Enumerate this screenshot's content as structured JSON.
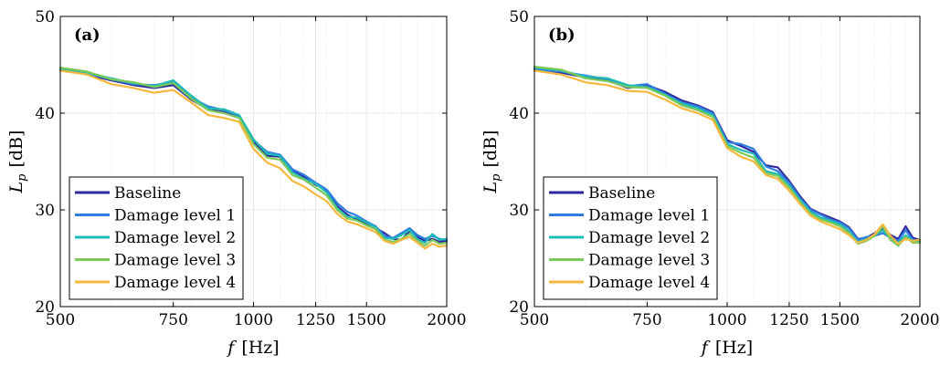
{
  "chart_data": [
    {
      "type": "line",
      "panel_label": "(a)",
      "xlabel_var": "f",
      "xlabel_unit": "[Hz]",
      "ylabel_var": "L",
      "ylabel_sub": "p",
      "ylabel_unit": "[dB]",
      "xscale": "log",
      "xlim": [
        500,
        2000
      ],
      "ylim": [
        20,
        50
      ],
      "xticks": [
        500,
        750,
        1000,
        1250,
        1500,
        2000
      ],
      "yticks": [
        20,
        30,
        40,
        50
      ],
      "grid": true,
      "legend_position": "bottom-left",
      "x": [
        500,
        550,
        600,
        650,
        700,
        750,
        800,
        850,
        900,
        950,
        1000,
        1050,
        1100,
        1150,
        1200,
        1250,
        1300,
        1350,
        1400,
        1450,
        1500,
        1550,
        1600,
        1650,
        1700,
        1750,
        1800,
        1850,
        1900,
        1950,
        2000
      ],
      "series": [
        {
          "name": "Baseline",
          "color": "#2e2a9e",
          "values": [
            44.5,
            44.0,
            43.4,
            42.9,
            42.6,
            42.9,
            41.4,
            40.4,
            40.1,
            39.6,
            37.0,
            35.6,
            35.5,
            34.0,
            33.4,
            32.6,
            32.0,
            30.4,
            29.5,
            29.0,
            28.6,
            28.1,
            27.6,
            27.0,
            26.9,
            27.8,
            27.2,
            26.8,
            27.0,
            26.7,
            26.8
          ]
        },
        {
          "name": "Damage level 1",
          "color": "#2f7de0",
          "values": [
            44.5,
            44.1,
            43.5,
            43.0,
            42.9,
            43.2,
            41.6,
            40.7,
            40.3,
            39.7,
            37.2,
            36.0,
            35.7,
            34.2,
            33.6,
            32.8,
            32.1,
            30.7,
            29.8,
            29.4,
            28.8,
            28.3,
            27.3,
            27.1,
            27.6,
            28.1,
            27.4,
            27.0,
            27.3,
            27.0,
            26.9
          ]
        },
        {
          "name": "Damage level 2",
          "color": "#1fbbb5",
          "values": [
            44.6,
            44.2,
            43.6,
            43.1,
            42.8,
            43.4,
            41.8,
            40.5,
            40.4,
            39.8,
            37.3,
            35.8,
            35.6,
            33.9,
            33.2,
            32.7,
            31.8,
            30.2,
            29.3,
            29.2,
            28.7,
            28.2,
            27.1,
            27.0,
            27.4,
            27.9,
            27.0,
            26.6,
            27.5,
            26.9,
            27.0
          ]
        },
        {
          "name": "Damage level 3",
          "color": "#7cc95a",
          "values": [
            44.7,
            44.3,
            43.5,
            43.2,
            42.7,
            43.1,
            41.5,
            40.3,
            40.0,
            39.5,
            36.8,
            35.4,
            35.2,
            33.6,
            33.1,
            32.3,
            31.5,
            30.0,
            29.1,
            28.9,
            28.4,
            28.0,
            26.9,
            26.7,
            27.0,
            27.5,
            26.8,
            26.3,
            26.9,
            26.5,
            26.6
          ]
        },
        {
          "name": "Damage level 4",
          "color": "#f5b83d",
          "values": [
            44.4,
            44.0,
            43.0,
            42.6,
            42.1,
            42.4,
            41.1,
            39.8,
            39.5,
            39.1,
            36.3,
            34.9,
            34.3,
            33.0,
            32.4,
            31.6,
            30.9,
            29.6,
            28.8,
            28.5,
            28.1,
            27.7,
            26.8,
            26.5,
            26.9,
            27.2,
            26.6,
            26.0,
            26.5,
            26.2,
            26.3
          ]
        }
      ]
    },
    {
      "type": "line",
      "panel_label": "(b)",
      "xlabel_var": "f",
      "xlabel_unit": "[Hz]",
      "ylabel_var": "L",
      "ylabel_sub": "p",
      "ylabel_unit": "[dB]",
      "xscale": "log",
      "xlim": [
        500,
        2000
      ],
      "ylim": [
        20,
        50
      ],
      "xticks": [
        500,
        750,
        1000,
        1250,
        1500,
        2000
      ],
      "yticks": [
        20,
        30,
        40,
        50
      ],
      "grid": true,
      "legend_position": "bottom-left",
      "x": [
        500,
        550,
        600,
        650,
        700,
        750,
        800,
        850,
        900,
        950,
        1000,
        1050,
        1100,
        1150,
        1200,
        1250,
        1300,
        1350,
        1400,
        1450,
        1500,
        1550,
        1600,
        1650,
        1700,
        1750,
        1800,
        1850,
        1900,
        1950,
        2000
      ],
      "series": [
        {
          "name": "Baseline",
          "color": "#2e2a9e",
          "values": [
            44.6,
            44.2,
            43.7,
            43.4,
            42.6,
            42.9,
            42.2,
            41.3,
            40.8,
            40.1,
            37.2,
            36.6,
            36.0,
            34.6,
            34.4,
            33.0,
            31.4,
            30.1,
            29.6,
            29.2,
            28.8,
            28.2,
            27.0,
            27.1,
            27.6,
            28.1,
            27.4,
            27.0,
            28.3,
            27.1,
            26.9
          ]
        },
        {
          "name": "Damage level 1",
          "color": "#2f7de0",
          "values": [
            44.5,
            44.3,
            43.9,
            43.5,
            42.8,
            43.0,
            42.0,
            41.1,
            40.7,
            40.0,
            37.0,
            36.8,
            36.3,
            34.5,
            34.0,
            32.8,
            31.2,
            30.0,
            29.5,
            29.0,
            28.7,
            28.1,
            26.9,
            27.2,
            27.3,
            27.6,
            27.1,
            26.8,
            27.9,
            26.9,
            26.8
          ]
        },
        {
          "name": "Damage level 2",
          "color": "#1fbbb5",
          "values": [
            44.7,
            44.4,
            43.8,
            43.6,
            42.9,
            42.7,
            41.9,
            41.0,
            40.5,
            39.8,
            36.8,
            36.2,
            35.8,
            34.0,
            33.7,
            32.5,
            31.0,
            29.8,
            29.2,
            28.9,
            28.5,
            27.8,
            26.7,
            27.0,
            27.4,
            27.9,
            27.0,
            26.6,
            27.4,
            26.8,
            26.7
          ]
        },
        {
          "name": "Damage level 3",
          "color": "#7cc95a",
          "values": [
            44.8,
            44.5,
            43.6,
            43.3,
            42.7,
            42.6,
            41.8,
            40.8,
            40.3,
            39.6,
            36.6,
            35.9,
            35.4,
            33.8,
            33.5,
            32.3,
            30.8,
            29.6,
            29.0,
            28.7,
            28.3,
            27.6,
            26.5,
            26.8,
            27.3,
            28.3,
            26.9,
            26.3,
            27.2,
            26.6,
            26.6
          ]
        },
        {
          "name": "Damage level 4",
          "color": "#f5b83d",
          "values": [
            44.4,
            44.0,
            43.2,
            42.9,
            42.3,
            42.2,
            41.4,
            40.5,
            40.0,
            39.3,
            36.4,
            35.5,
            35.0,
            33.6,
            33.2,
            32.0,
            30.6,
            29.4,
            28.8,
            28.4,
            28.0,
            27.4,
            26.6,
            26.9,
            27.5,
            28.5,
            27.3,
            26.5,
            27.0,
            26.8,
            26.9
          ]
        }
      ]
    }
  ]
}
